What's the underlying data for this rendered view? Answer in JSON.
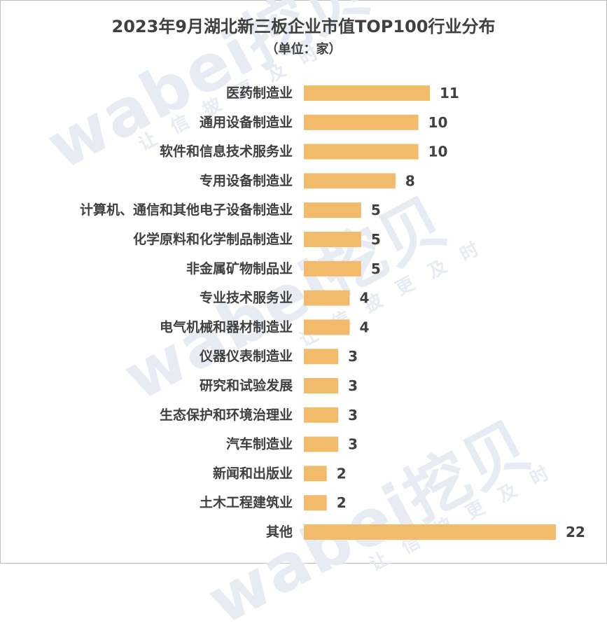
{
  "chart_data": {
    "type": "bar",
    "orientation": "horizontal",
    "title": "2023年9月湖北新三板企业市值TOP100行业分布",
    "subtitle": "（单位：家）",
    "categories": [
      "医药制造业",
      "通用设备制造业",
      "软件和信息技术服务业",
      "专用设备制造业",
      "计算机、通信和其他电子设备制造业",
      "化学原料和化学制品制造业",
      "非金属矿物制品业",
      "专业技术服务业",
      "电气机械和器材制造业",
      "仪器仪表制造业",
      "研究和试验发展",
      "生态保护和环境治理业",
      "汽车制造业",
      "新闻和出版业",
      "土木工程建筑业",
      "其他"
    ],
    "values": [
      11,
      10,
      10,
      8,
      5,
      5,
      5,
      4,
      4,
      3,
      3,
      3,
      3,
      2,
      2,
      22
    ],
    "xlim": [
      0,
      22
    ],
    "grid": false,
    "legend": "none",
    "bar_color": "#f2bb6c"
  },
  "watermark": {
    "brand": "wabei挖贝",
    "slogan": "让信披更及时"
  }
}
